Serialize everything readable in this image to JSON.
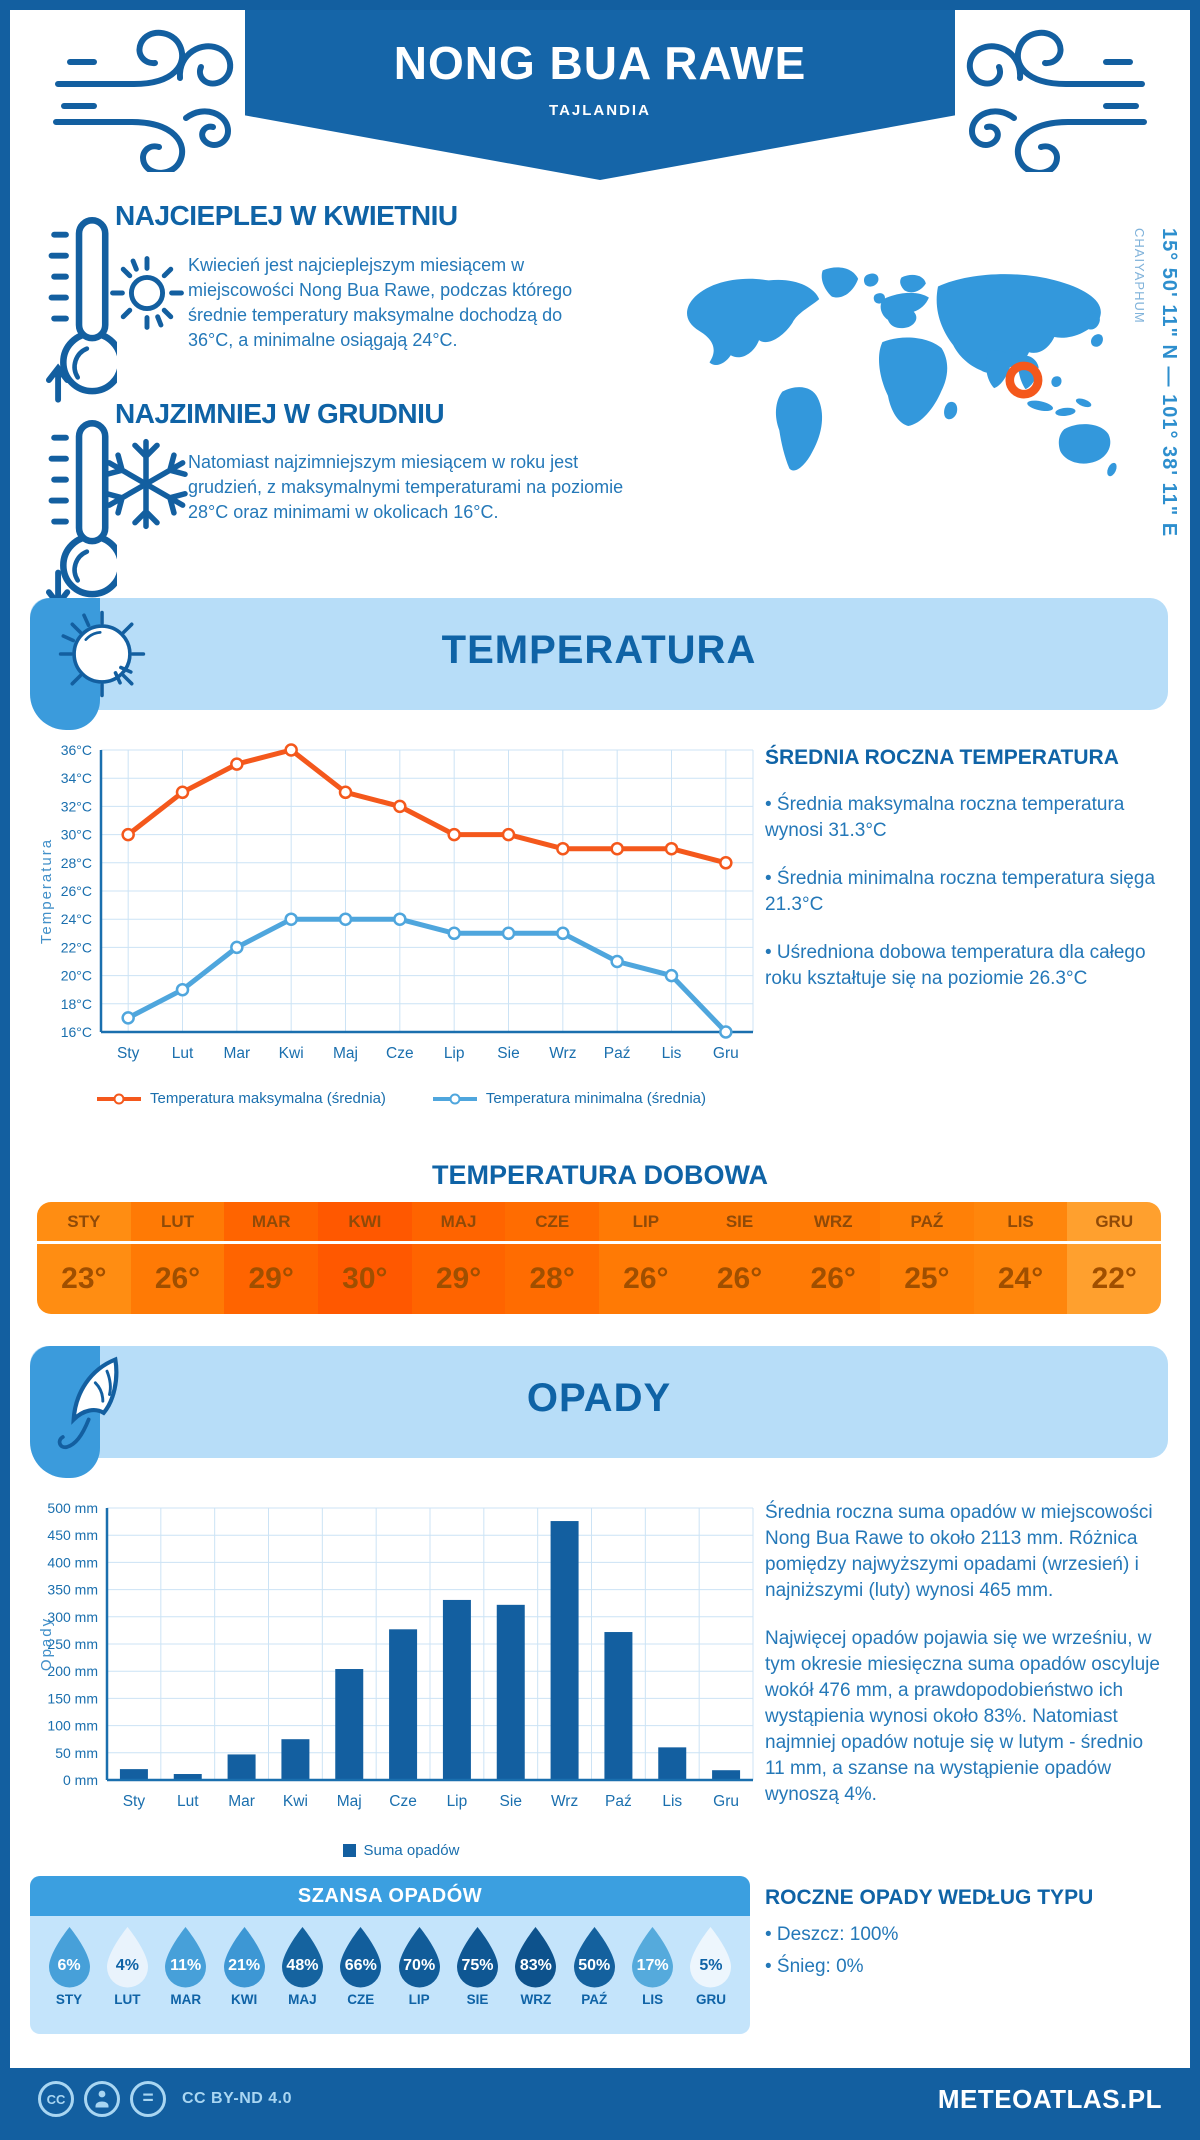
{
  "header": {
    "location": "NONG BUA RAWE",
    "country": "TAJLANDIA"
  },
  "geo": {
    "coords": "15° 50' 11\" N — 101° 38' 11\" E",
    "region": "CHAIYAPHUM"
  },
  "warmest": {
    "title": "NAJCIEPLEJ W KWIETNIU",
    "text": "Kwiecień jest najcieplejszym miesiącem w miejscowości Nong Bua Rawe, podczas którego średnie temperatury maksymalne dochodzą do 36°C, a minimalne osiągają 24°C."
  },
  "coldest": {
    "title": "NAJZIMNIEJ W GRUDNIU",
    "text": "Natomiast najzimniejszym miesiącem w roku jest grudzień, z maksymalnymi temperaturami na poziomie 28°C oraz minimami w okolicach 16°C."
  },
  "temperature_section": {
    "banner_title": "TEMPERATURA",
    "summary_title": "ŚREDNIA ROCZNA TEMPERATURA",
    "bullets": [
      "• Średnia maksymalna roczna temperatura wynosi 31.3°C",
      "• Średnia minimalna roczna temperatura sięga 21.3°C",
      "• Uśredniona dobowa temperatura dla całego roku kształtuje się na poziomie 26.3°C"
    ],
    "daily_title": "TEMPERATURA DOBOWA"
  },
  "daily_temp": {
    "months": [
      "STY",
      "LUT",
      "MAR",
      "KWI",
      "MAJ",
      "CZE",
      "LIP",
      "SIE",
      "WRZ",
      "PAŹ",
      "LIS",
      "GRU"
    ],
    "values": [
      "23°",
      "26°",
      "29°",
      "30°",
      "29°",
      "28°",
      "26°",
      "26°",
      "26°",
      "25°",
      "24°",
      "22°"
    ],
    "colors": [
      "#FF8D12",
      "#FF7A05",
      "#FF6400",
      "#FF5800",
      "#FF6400",
      "#FF6C01",
      "#FF7A05",
      "#FF7A05",
      "#FF7A05",
      "#FF8007",
      "#FF860C",
      "#FFA02E"
    ]
  },
  "precip_section": {
    "banner_title": "OPADY",
    "paragraphs": [
      "Średnia roczna suma opadów w miejscowości Nong Bua Rawe to około 2113 mm. Różnica pomiędzy najwyższymi opadami (wrzesień) i najniższymi (luty) wynosi 465 mm.",
      "Najwięcej opadów pojawia się we wrześniu, w tym okresie miesięczna suma opadów oscyluje wokół 476 mm, a prawdopodobieństwo ich wystąpienia wynosi około 83%. Natomiast najmniej opadów notuje się w lutym - średnio 11 mm, a szanse na wystąpienie opadów wynoszą 4%."
    ],
    "type_title": "ROCZNE OPADY WEDŁUG TYPU",
    "type_bullets": [
      "• Deszcz: 100%",
      "• Śnieg: 0%"
    ],
    "legend": "Suma opadów"
  },
  "rain_chance": {
    "title": "SZANSA OPADÓW",
    "months": [
      "STY",
      "LUT",
      "MAR",
      "KWI",
      "MAJ",
      "CZE",
      "LIP",
      "SIE",
      "WRZ",
      "PAŹ",
      "LIS",
      "GRU"
    ],
    "values": [
      "6%",
      "4%",
      "11%",
      "21%",
      "48%",
      "66%",
      "70%",
      "75%",
      "83%",
      "50%",
      "17%",
      "5%"
    ],
    "drop_colors": [
      "#47A0D9",
      "#E9F3FC",
      "#47A0D9",
      "#3D97D4",
      "#15639F",
      "#125E9C",
      "#115C99",
      "#0F5793",
      "#0D528C",
      "#14619E",
      "#55AADC",
      "#EDF6FD"
    ],
    "text_colors": [
      "#ffffff",
      "#0F63A6",
      "#ffffff",
      "#ffffff",
      "#ffffff",
      "#ffffff",
      "#ffffff",
      "#ffffff",
      "#ffffff",
      "#ffffff",
      "#ffffff",
      "#0F63A6"
    ]
  },
  "footer": {
    "license": "CC BY-ND 4.0",
    "site": "METEOATLAS.PL"
  },
  "colors": {
    "dark_blue": "#135FA0",
    "light_banner": "#B7DDF8",
    "map_blue": "#3398DC",
    "marker_orange": "#F4581C"
  },
  "chart_data": [
    {
      "type": "line",
      "categories": [
        "Sty",
        "Lut",
        "Mar",
        "Kwi",
        "Maj",
        "Cze",
        "Lip",
        "Sie",
        "Wrz",
        "Paź",
        "Lis",
        "Gru"
      ],
      "series": [
        {
          "name": "Temperatura maksymalna (średnia)",
          "color": "#F4581C",
          "values": [
            30,
            33,
            35,
            36,
            33,
            32,
            30,
            30,
            29,
            29,
            29,
            28
          ]
        },
        {
          "name": "Temperatura minimalna (średnia)",
          "color": "#4FA6DD",
          "values": [
            17,
            19,
            22,
            24,
            24,
            24,
            23,
            23,
            23,
            21,
            20,
            16
          ]
        }
      ],
      "ylabel": "Temperatura",
      "ylim": [
        16,
        36
      ],
      "ytick_step": 2,
      "ytick_suffix": "°C",
      "grid": true,
      "legend_position": "bottom",
      "axis_color": "#1A6FAE",
      "grid_color": "#CCE3F5"
    },
    {
      "type": "bar",
      "categories": [
        "Sty",
        "Lut",
        "Mar",
        "Kwi",
        "Maj",
        "Cze",
        "Lip",
        "Sie",
        "Wrz",
        "Paź",
        "Lis",
        "Gru"
      ],
      "values": [
        20,
        11,
        47,
        75,
        204,
        277,
        331,
        322,
        476,
        272,
        60,
        18
      ],
      "title": "",
      "xlabel": "",
      "ylabel": "Opady",
      "ylim": [
        0,
        500
      ],
      "ytick_step": 50,
      "ytick_suffix": " mm",
      "bar_color": "#135FA0",
      "legend": "Suma opadów",
      "grid": true,
      "axis_color": "#1A6FAE",
      "grid_color": "#CCE3F5"
    }
  ]
}
